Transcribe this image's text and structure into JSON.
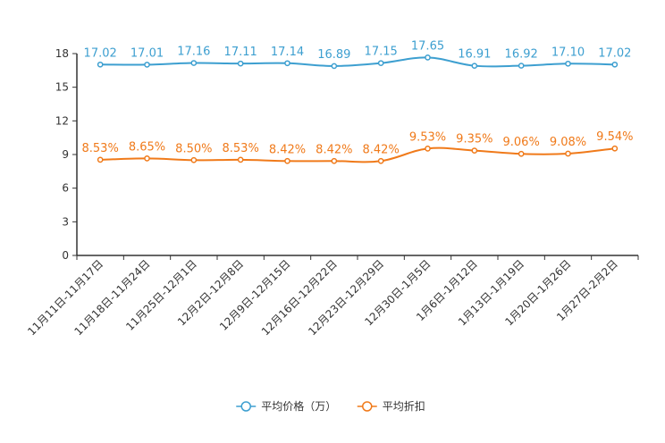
{
  "chart_data": {
    "type": "line",
    "title": "",
    "xlabel": "",
    "ylabel": "",
    "ylim": [
      0,
      18
    ],
    "yticks": [
      0,
      3,
      6,
      9,
      12,
      15,
      18
    ],
    "categories": [
      "11月11日-11月17日",
      "11月18日-11月24日",
      "11月25日-12月1日",
      "12月2日-12月8日",
      "12月9日-12月15日",
      "12月16日-12月22日",
      "12月23日-12月29日",
      "12月30日-1月5日",
      "1月6日-1月12日",
      "1月13日-1月19日",
      "1月20日-1月26日",
      "1月27日-2月2日"
    ],
    "series": [
      {
        "name": "平均价格（万）",
        "color": "#3d9fd0",
        "values": [
          17.02,
          17.01,
          17.16,
          17.11,
          17.14,
          16.89,
          17.15,
          17.65,
          16.91,
          16.92,
          17.1,
          17.02
        ],
        "labels": [
          "17.02",
          "17.01",
          "17.16",
          "17.11",
          "17.14",
          "16.89",
          "17.15",
          "17.65",
          "16.91",
          "16.92",
          "17.10",
          "17.02"
        ]
      },
      {
        "name": "平均折扣",
        "color": "#f07a1a",
        "values": [
          8.53,
          8.65,
          8.5,
          8.53,
          8.42,
          8.42,
          8.42,
          9.53,
          9.35,
          9.06,
          9.08,
          9.54
        ],
        "labels": [
          "8.53%",
          "8.65%",
          "8.50%",
          "8.53%",
          "8.42%",
          "8.42%",
          "8.42%",
          "9.53%",
          "9.35%",
          "9.06%",
          "9.08%",
          "9.54%"
        ]
      }
    ],
    "legend_position": "bottom-center",
    "grid": false
  }
}
